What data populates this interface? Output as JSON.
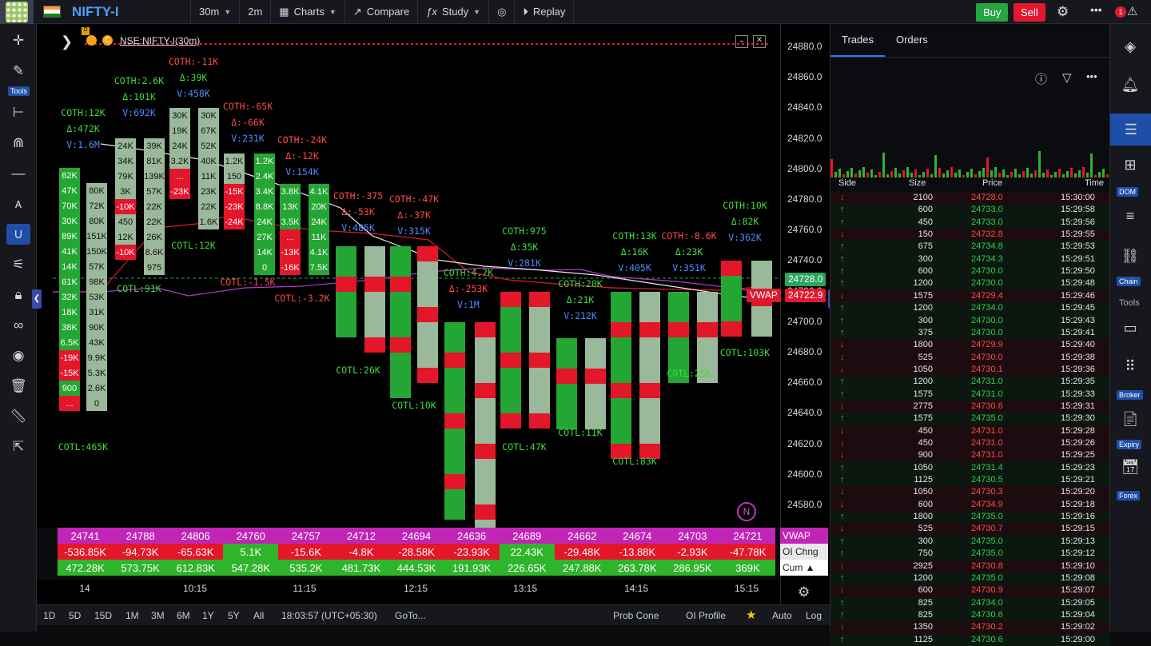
{
  "topbar": {
    "symbol": "NIFTY-I",
    "interval": "30m",
    "interval2": "2m",
    "charts": "Charts",
    "compare": "Compare",
    "study": "Study",
    "replay": "Replay",
    "buy": "Buy",
    "sell": "Sell",
    "notif": "1"
  },
  "left_toolbar": {
    "tools_label": "Tools"
  },
  "chart": {
    "legend": "NSE:NIFTY-I(30m)",
    "vwap_label": "VWAP",
    "last_price": "24728.0",
    "vwap_price": "24722.9",
    "n_badge": "N",
    "d_badge": "D"
  },
  "price_axis": [
    "24880.0",
    "24860.0",
    "24840.0",
    "24820.0",
    "24800.0",
    "24780.0",
    "24760.0",
    "24740.0",
    "24720.0",
    "24700.0",
    "24680.0",
    "24660.0",
    "24640.0",
    "24620.0",
    "24600.0",
    "24580.0"
  ],
  "time_axis": [
    "14",
    "10:15",
    "11:15",
    "12:15",
    "13:15",
    "14:15",
    "15:15"
  ],
  "footer": {
    "vwap": [
      "24741",
      "24788",
      "24806",
      "24760",
      "24757",
      "24712",
      "24694",
      "24636",
      "24689",
      "24662",
      "24674",
      "24703",
      "24721"
    ],
    "oi_chng": [
      "-536.85K",
      "-94.73K",
      "-65.63K",
      "5.1K",
      "-15.6K",
      "-4.8K",
      "-28.58K",
      "-23.93K",
      "22.43K",
      "-29.48K",
      "-13.88K",
      "-2.93K",
      "-47.78K"
    ],
    "cum": [
      "472.28K",
      "573.75K",
      "612.83K",
      "547.28K",
      "535.2K",
      "481.73K",
      "444.53K",
      "191.93K",
      "226.65K",
      "247.88K",
      "263.78K",
      "286.95K",
      "369K"
    ],
    "legend": [
      "VWAP",
      "OI Chng",
      "Cum ▲"
    ]
  },
  "bottombar": {
    "ranges": [
      "1D",
      "5D",
      "15D",
      "1M",
      "3M",
      "6M",
      "1Y",
      "5Y",
      "All"
    ],
    "clock": "18:03:57 (UTC+05:30)",
    "goto": "GoTo...",
    "probcone": "Prob Cone",
    "oiprofile": "OI Profile",
    "auto": "Auto",
    "log": "Log"
  },
  "panel": {
    "tabs": [
      "Trades",
      "Orders"
    ],
    "headers": [
      "Side",
      "Size",
      "Price",
      "Time"
    ]
  },
  "trades": [
    [
      "sell",
      "2100",
      "24728.0",
      "15:30:00"
    ],
    [
      "buy",
      "600",
      "24733.0",
      "15:29:58"
    ],
    [
      "buy",
      "450",
      "24733.0",
      "15:29:56"
    ],
    [
      "sell",
      "150",
      "24732.8",
      "15:29:55"
    ],
    [
      "buy",
      "675",
      "24734.8",
      "15:29:53"
    ],
    [
      "buy",
      "300",
      "24734.3",
      "15:29:51"
    ],
    [
      "buy",
      "600",
      "24730.0",
      "15:29:50"
    ],
    [
      "buy",
      "1200",
      "24730.0",
      "15:29:48"
    ],
    [
      "sell",
      "1575",
      "24729.4",
      "15:29:46"
    ],
    [
      "buy",
      "1200",
      "24734.0",
      "15:29:45"
    ],
    [
      "buy",
      "300",
      "24730.0",
      "15:29:43"
    ],
    [
      "buy",
      "375",
      "24730.0",
      "15:29:41"
    ],
    [
      "sell",
      "1800",
      "24729.9",
      "15:29:40"
    ],
    [
      "sell",
      "525",
      "24730.0",
      "15:29:38"
    ],
    [
      "sell",
      "1050",
      "24730.1",
      "15:29:36"
    ],
    [
      "buy",
      "1200",
      "24731.0",
      "15:29:35"
    ],
    [
      "buy",
      "1575",
      "24731.0",
      "15:29:33"
    ],
    [
      "sell",
      "2775",
      "24730.6",
      "15:29:31"
    ],
    [
      "buy",
      "1575",
      "24735.0",
      "15:29:30"
    ],
    [
      "sell",
      "450",
      "24731.0",
      "15:29:28"
    ],
    [
      "sell",
      "450",
      "24731.0",
      "15:29:26"
    ],
    [
      "sell",
      "900",
      "24731.0",
      "15:29:25"
    ],
    [
      "buy",
      "1050",
      "24731.4",
      "15:29:23"
    ],
    [
      "buy",
      "1125",
      "24730.5",
      "15:29:21"
    ],
    [
      "sell",
      "1050",
      "24730.3",
      "15:29:20"
    ],
    [
      "sell",
      "600",
      "24734.9",
      "15:29:18"
    ],
    [
      "buy",
      "1800",
      "24735.0",
      "15:29:16"
    ],
    [
      "sell",
      "525",
      "24730.7",
      "15:29:15"
    ],
    [
      "buy",
      "300",
      "24735.0",
      "15:29:13"
    ],
    [
      "buy",
      "750",
      "24735.0",
      "15:29:12"
    ],
    [
      "sell",
      "2925",
      "24730.8",
      "15:29:10"
    ],
    [
      "buy",
      "1200",
      "24735.0",
      "15:29:08"
    ],
    [
      "sell",
      "600",
      "24730.9",
      "15:29:07"
    ],
    [
      "buy",
      "825",
      "24734.0",
      "15:29:05"
    ],
    [
      "buy",
      "825",
      "24730.6",
      "15:29:04"
    ],
    [
      "sell",
      "1350",
      "24730.2",
      "15:29:02"
    ],
    [
      "buy",
      "1125",
      "24730.6",
      "15:29:00"
    ]
  ],
  "right_toolbar": {
    "dom": "DOM",
    "chain": "Chain",
    "tools": "Tools",
    "broker": "Broker",
    "expiry": "Expiry",
    "forex": "Forex"
  },
  "candles": [
    {
      "top": [
        "62K",
        "47K",
        "70K",
        "30K",
        "89K",
        "41K",
        "14K",
        "61K",
        "32K",
        "18K",
        "38K",
        "6.5K",
        "-19K",
        "-15K",
        "900",
        "..."
      ],
      "c2": [
        "",
        "80K",
        "72K",
        "80K",
        "151K",
        "150K",
        "57K",
        "98K",
        "53K",
        "31K",
        "90K",
        "43K",
        "9.9K",
        "5.3K",
        "2.6K",
        "0"
      ]
    },
    {
      "c1": [
        "24K",
        "34K",
        "79K",
        "3K",
        "-10K",
        "450",
        "12K",
        "-10K"
      ],
      "c2": [
        "39K",
        "81K",
        "139K",
        "57K",
        "22K",
        "22K",
        "26K",
        "8.6K",
        "975"
      ]
    },
    {
      "c1": [
        "30K",
        "19K",
        "24K",
        "3.2K",
        "...",
        "-23K"
      ],
      "c2": [
        "30K",
        "67K",
        "52K",
        "40K",
        "11K",
        "23K",
        "22K",
        "1.6K"
      ]
    },
    {
      "c1": [
        "1.2K",
        "150",
        "-15K",
        "-23K",
        "-24K"
      ],
      "c2": [
        "1.2K",
        "2.4K",
        "3.4K",
        "8.8K",
        "24K",
        "27K",
        "14K",
        "0"
      ]
    },
    {
      "c1": [
        "3.8K",
        "13K",
        "3.5K",
        "...",
        "-13K",
        "-16K"
      ],
      "c2": [
        "4.1K",
        "20K",
        "24K",
        "11K",
        "4.1K",
        "7.5K"
      ]
    }
  ],
  "annotations": [
    {
      "t": "COTH:12K",
      "c": "ag"
    },
    {
      "t": "Δ:472K",
      "c": "ag"
    },
    {
      "t": "V:1.6M",
      "c": "ab"
    },
    {
      "t": "COTL:465K",
      "c": "ag"
    },
    {
      "t": "COTH:2.6K",
      "c": "ag"
    },
    {
      "t": "Δ:101K",
      "c": "ag"
    },
    {
      "t": "V:692K",
      "c": "ab"
    },
    {
      "t": "COTL:91K",
      "c": "ag"
    },
    {
      "t": "COTH:-11K",
      "c": "ar"
    },
    {
      "t": "Δ:39K",
      "c": "ag"
    },
    {
      "t": "V:458K",
      "c": "ab"
    },
    {
      "t": "COTL:12K",
      "c": "ag"
    },
    {
      "t": "COTH:-65K",
      "c": "ar"
    },
    {
      "t": "Δ:-66K",
      "c": "ar"
    },
    {
      "t": "V:231K",
      "c": "ab"
    },
    {
      "t": "COTL:-1.5K",
      "c": "ar"
    },
    {
      "t": "COTH:-24K",
      "c": "ar"
    },
    {
      "t": "Δ:-12K",
      "c": "ar"
    },
    {
      "t": "V:154K",
      "c": "ab"
    },
    {
      "t": "COTL:-3.2K",
      "c": "ar"
    },
    {
      "t": "COTH:-375",
      "c": "ar"
    },
    {
      "t": "Δ:-53K",
      "c": "ar"
    },
    {
      "t": "V:485K",
      "c": "ab"
    },
    {
      "t": "COTL:26K",
      "c": "ag"
    },
    {
      "t": "COTH:-47K",
      "c": "ar"
    },
    {
      "t": "Δ:-37K",
      "c": "ar"
    },
    {
      "t": "V:315K",
      "c": "ab"
    },
    {
      "t": "COTL:10K",
      "c": "ag"
    },
    {
      "t": "COTH:4.7K",
      "c": "ag"
    },
    {
      "t": "Δ:-253K",
      "c": "ar"
    },
    {
      "t": "V:1M",
      "c": "ab"
    },
    {
      "t": "COTH:975",
      "c": "ag"
    },
    {
      "t": "Δ:35K",
      "c": "ag"
    },
    {
      "t": "V:281K",
      "c": "ab"
    },
    {
      "t": "COTL:47K",
      "c": "ag"
    },
    {
      "t": "COTH:20K",
      "c": "ag"
    },
    {
      "t": "Δ:21K",
      "c": "ag"
    },
    {
      "t": "V:212K",
      "c": "ab"
    },
    {
      "t": "COTL:11K",
      "c": "ag"
    },
    {
      "t": "COTH:13K",
      "c": "ag"
    },
    {
      "t": "Δ:16K",
      "c": "ag"
    },
    {
      "t": "V:405K",
      "c": "ab"
    },
    {
      "t": "COTL:83K",
      "c": "ag"
    },
    {
      "t": "COTH:-8.6K",
      "c": "ar"
    },
    {
      "t": "Δ:23K",
      "c": "ag"
    },
    {
      "t": "V:351K",
      "c": "ab"
    },
    {
      "t": "COTL:25K",
      "c": "ag"
    },
    {
      "t": "COTH:10K",
      "c": "ag"
    },
    {
      "t": "Δ:82K",
      "c": "ag"
    },
    {
      "t": "V:362K",
      "c": "ab"
    },
    {
      "t": "COTL:103K",
      "c": "ag"
    }
  ]
}
